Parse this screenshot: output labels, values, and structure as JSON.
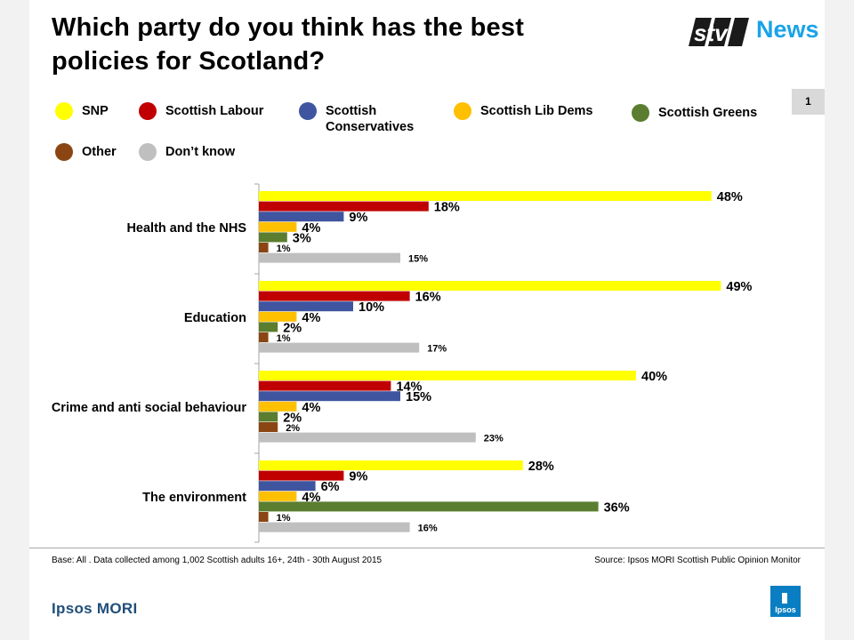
{
  "title": "Which party do you think has the best policies for Scotland?",
  "brand": {
    "stv_logo": "stv",
    "news_logo": "News",
    "ipsos": "Ipsos MORI",
    "ipsos_logo_text": "Ipsos"
  },
  "page_number": "1",
  "legend": [
    {
      "label": "SNP",
      "color": "#ffff00"
    },
    {
      "label": "Scottish Labour",
      "color": "#c00000"
    },
    {
      "label": "Scottish Conservatives",
      "color": "#3f55a0"
    },
    {
      "label": "Scottish Lib Dems",
      "color": "#ffc000"
    },
    {
      "label": "Scottish Greens",
      "color": "#5b7d2f"
    },
    {
      "label": "Other",
      "color": "#8b4513"
    },
    {
      "label": "Don’t know",
      "color": "#bfbfbf"
    }
  ],
  "footnote_left": "Base: All . Data collected among 1,002 Scottish adults 16+, 24th - 30th August 2015",
  "footnote_right": "Source: Ipsos MORI Scottish Public Opinion Monitor",
  "chart_data": {
    "type": "bar",
    "orientation": "horizontal",
    "categories": [
      "Health and the NHS",
      "Education",
      "Crime and anti social behaviour",
      "The environment"
    ],
    "series": [
      {
        "name": "SNP",
        "color": "#ffff00",
        "values": [
          48,
          49,
          40,
          28
        ]
      },
      {
        "name": "Scottish Labour",
        "color": "#c00000",
        "values": [
          18,
          16,
          14,
          9
        ]
      },
      {
        "name": "Scottish Conservatives",
        "color": "#3f55a0",
        "values": [
          9,
          10,
          15,
          6
        ]
      },
      {
        "name": "Scottish Lib Dems",
        "color": "#ffc000",
        "values": [
          4,
          4,
          4,
          4
        ]
      },
      {
        "name": "Scottish Greens",
        "color": "#5b7d2f",
        "values": [
          3,
          2,
          2,
          36
        ]
      },
      {
        "name": "Other",
        "color": "#8b4513",
        "values": [
          1,
          1,
          2,
          1
        ]
      },
      {
        "name": "Don’t know",
        "color": "#bfbfbf",
        "values": [
          15,
          17,
          23,
          16
        ]
      }
    ],
    "unit": "%",
    "xlim": [
      0,
      49
    ],
    "grid": false,
    "legend_position": "top"
  }
}
